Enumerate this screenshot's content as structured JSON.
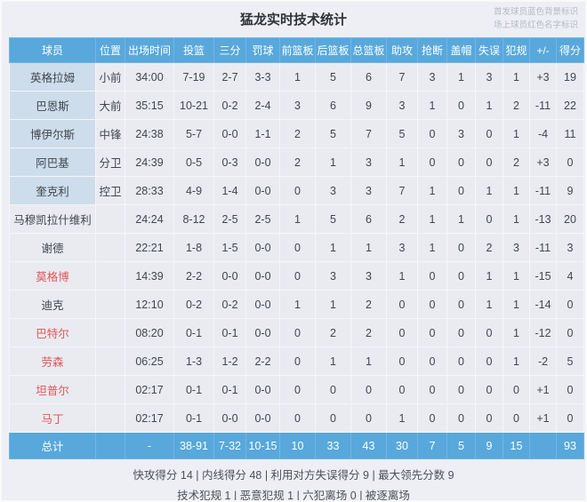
{
  "header": {
    "title": "猛龙实时技术统计",
    "note_line1": "首发球员蓝色背景标识",
    "note_line2": "场上球员红色名字标识"
  },
  "colors": {
    "header_blue": "#58a8dc",
    "starter_bg": "#cdddec",
    "on_court_red": "#e15757"
  },
  "table": {
    "columns": [
      "球员",
      "位置",
      "出场时间",
      "投篮",
      "三分",
      "罚球",
      "前篮板",
      "后篮板",
      "总篮板",
      "助攻",
      "抢断",
      "盖帽",
      "失误",
      "犯规",
      "+/-",
      "得分"
    ],
    "rows": [
      {
        "player": "英格拉姆",
        "starter": true,
        "on_court": false,
        "pos": "小前",
        "time": "34:00",
        "fg": "7-19",
        "tp": "2-7",
        "ft": "3-3",
        "oreb": "1",
        "dreb": "5",
        "treb": "6",
        "ast": "7",
        "stl": "3",
        "blk": "1",
        "tov": "3",
        "pf": "1",
        "pm": "+3",
        "pts": "19"
      },
      {
        "player": "巴恩斯",
        "starter": true,
        "on_court": false,
        "pos": "大前",
        "time": "35:15",
        "fg": "10-21",
        "tp": "0-2",
        "ft": "2-4",
        "oreb": "3",
        "dreb": "6",
        "treb": "9",
        "ast": "3",
        "stl": "1",
        "blk": "0",
        "tov": "1",
        "pf": "2",
        "pm": "-11",
        "pts": "22"
      },
      {
        "player": "博伊尔斯",
        "starter": true,
        "on_court": false,
        "pos": "中锋",
        "time": "24:38",
        "fg": "5-7",
        "tp": "0-0",
        "ft": "1-1",
        "oreb": "2",
        "dreb": "5",
        "treb": "7",
        "ast": "5",
        "stl": "0",
        "blk": "3",
        "tov": "0",
        "pf": "1",
        "pm": "-4",
        "pts": "11"
      },
      {
        "player": "阿巴基",
        "starter": true,
        "on_court": false,
        "pos": "分卫",
        "time": "24:39",
        "fg": "0-5",
        "tp": "0-3",
        "ft": "0-0",
        "oreb": "2",
        "dreb": "1",
        "treb": "3",
        "ast": "1",
        "stl": "0",
        "blk": "0",
        "tov": "0",
        "pf": "2",
        "pm": "+3",
        "pts": "0"
      },
      {
        "player": "奎克利",
        "starter": true,
        "on_court": false,
        "pos": "控卫",
        "time": "28:33",
        "fg": "4-9",
        "tp": "1-4",
        "ft": "0-0",
        "oreb": "0",
        "dreb": "3",
        "treb": "3",
        "ast": "7",
        "stl": "1",
        "blk": "0",
        "tov": "1",
        "pf": "1",
        "pm": "-11",
        "pts": "9"
      },
      {
        "player": "马穆凯拉什维利",
        "starter": false,
        "on_court": false,
        "pos": "",
        "time": "24:24",
        "fg": "8-12",
        "tp": "2-5",
        "ft": "2-5",
        "oreb": "1",
        "dreb": "5",
        "treb": "6",
        "ast": "2",
        "stl": "1",
        "blk": "1",
        "tov": "0",
        "pf": "1",
        "pm": "-13",
        "pts": "20"
      },
      {
        "player": "谢德",
        "starter": false,
        "on_court": false,
        "pos": "",
        "time": "22:21",
        "fg": "1-8",
        "tp": "1-5",
        "ft": "0-0",
        "oreb": "0",
        "dreb": "1",
        "treb": "1",
        "ast": "3",
        "stl": "1",
        "blk": "0",
        "tov": "2",
        "pf": "3",
        "pm": "-11",
        "pts": "3"
      },
      {
        "player": "莫格博",
        "starter": false,
        "on_court": true,
        "pos": "",
        "time": "14:39",
        "fg": "2-2",
        "tp": "0-0",
        "ft": "0-0",
        "oreb": "0",
        "dreb": "3",
        "treb": "3",
        "ast": "1",
        "stl": "0",
        "blk": "0",
        "tov": "1",
        "pf": "1",
        "pm": "-15",
        "pts": "4"
      },
      {
        "player": "迪克",
        "starter": false,
        "on_court": false,
        "pos": "",
        "time": "12:10",
        "fg": "0-2",
        "tp": "0-2",
        "ft": "0-0",
        "oreb": "1",
        "dreb": "1",
        "treb": "2",
        "ast": "0",
        "stl": "0",
        "blk": "0",
        "tov": "1",
        "pf": "1",
        "pm": "-14",
        "pts": "0"
      },
      {
        "player": "巴特尔",
        "starter": false,
        "on_court": true,
        "pos": "",
        "time": "08:20",
        "fg": "0-1",
        "tp": "0-1",
        "ft": "0-0",
        "oreb": "0",
        "dreb": "2",
        "treb": "2",
        "ast": "0",
        "stl": "0",
        "blk": "0",
        "tov": "0",
        "pf": "1",
        "pm": "-12",
        "pts": "0"
      },
      {
        "player": "劳森",
        "starter": false,
        "on_court": true,
        "pos": "",
        "time": "06:25",
        "fg": "1-3",
        "tp": "1-2",
        "ft": "2-2",
        "oreb": "0",
        "dreb": "1",
        "treb": "1",
        "ast": "0",
        "stl": "0",
        "blk": "0",
        "tov": "0",
        "pf": "1",
        "pm": "-2",
        "pts": "5"
      },
      {
        "player": "坦普尔",
        "starter": false,
        "on_court": true,
        "pos": "",
        "time": "02:17",
        "fg": "0-1",
        "tp": "0-1",
        "ft": "0-0",
        "oreb": "0",
        "dreb": "0",
        "treb": "0",
        "ast": "0",
        "stl": "0",
        "blk": "0",
        "tov": "0",
        "pf": "0",
        "pm": "+1",
        "pts": "0"
      },
      {
        "player": "马丁",
        "starter": false,
        "on_court": true,
        "pos": "",
        "time": "02:17",
        "fg": "0-1",
        "tp": "0-0",
        "ft": "0-0",
        "oreb": "0",
        "dreb": "0",
        "treb": "0",
        "ast": "1",
        "stl": "0",
        "blk": "0",
        "tov": "0",
        "pf": "0",
        "pm": "+1",
        "pts": "0"
      }
    ],
    "total": {
      "player": "总计",
      "pos": "",
      "time": "-",
      "fg": "38-91",
      "tp": "7-32",
      "ft": "10-15",
      "oreb": "10",
      "dreb": "33",
      "treb": "43",
      "ast": "30",
      "stl": "7",
      "blk": "5",
      "tov": "9",
      "pf": "15",
      "pm": "",
      "pts": "93"
    }
  },
  "footer": {
    "line1": "快攻得分 14 | 内线得分 48 | 利用对方失误得分 9 | 最大领先分数 9",
    "line2": "技术犯规 1 | 恶意犯规 1 | 六犯离场 0 | 被逐离场"
  }
}
